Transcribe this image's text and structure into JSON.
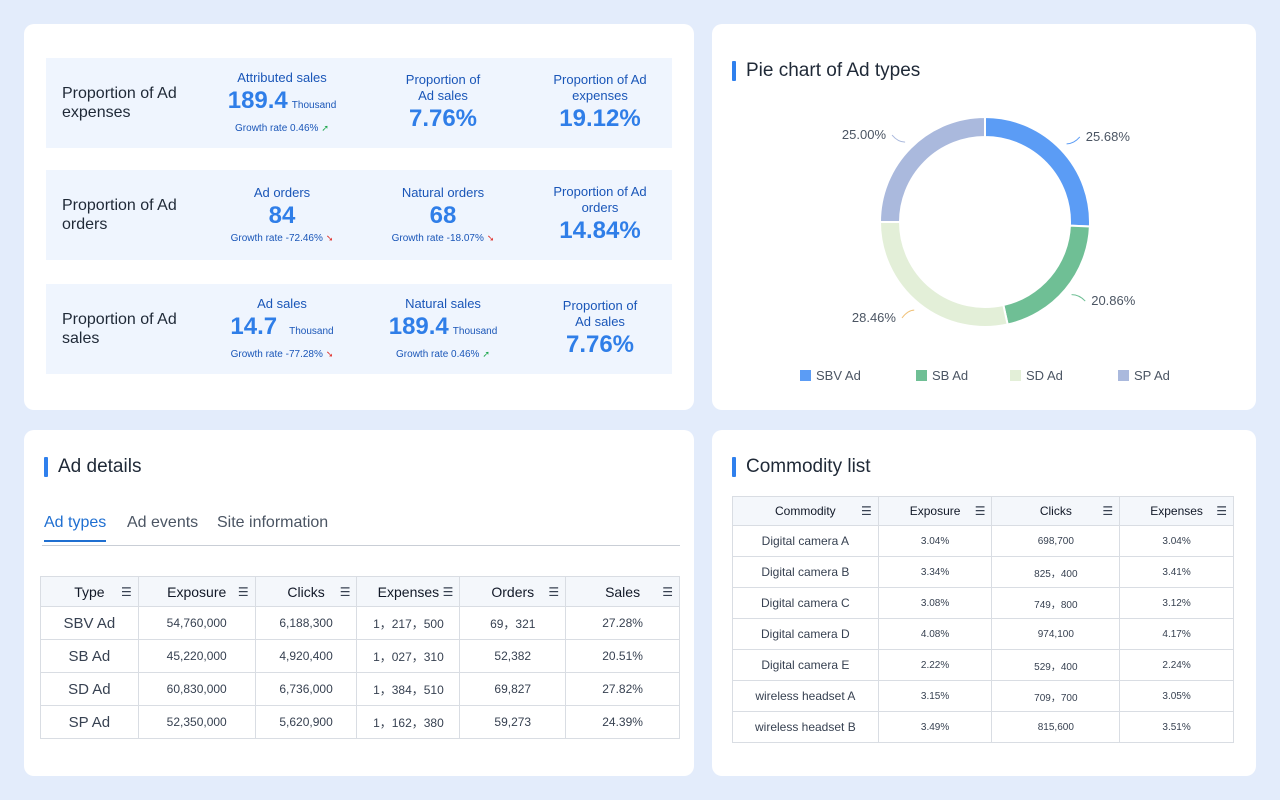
{
  "metrics": {
    "rows": [
      {
        "title": "Proportion of Ad expenses",
        "col1": {
          "label": "Attributed sales",
          "value": "189.4",
          "unit": "Thousand",
          "growth": "Growth rate 0.46%",
          "trend": "up"
        },
        "col2": {
          "label": "Proportion of Ad sales",
          "value": "7.76%"
        },
        "col3": {
          "label": "Proportion of Ad expenses",
          "value": "19.12%"
        }
      },
      {
        "title": "Proportion of Ad orders",
        "col1": {
          "label": "Ad orders",
          "value": "84",
          "unit": "",
          "growth": "Growth rate -72.46%",
          "trend": "down"
        },
        "col2": {
          "label": "Natural orders",
          "value": "68",
          "unit": "",
          "growth": "Growth rate -18.07%",
          "trend": "down"
        },
        "col3": {
          "label": "Proportion of Ad orders",
          "value": "14.84%"
        }
      },
      {
        "title": "Proportion of Ad sales",
        "col1": {
          "label": "Ad sales",
          "value": "14.7",
          "unit": "Thousand",
          "growth": "Growth rate -77.28%",
          "trend": "down"
        },
        "col2": {
          "label": "Natural sales",
          "value": "189.4",
          "unit": "Thousand",
          "growth": "Growth rate 0.46%",
          "trend": "up"
        },
        "col3": {
          "label": "Proportion of Ad sales",
          "value": "7.76%"
        }
      }
    ]
  },
  "pie": {
    "title": "Pie chart of Ad types",
    "chart_data": {
      "type": "pie",
      "title": "Pie chart of Ad types",
      "categories": [
        "SBV Ad",
        "SB Ad",
        "SD Ad",
        "SP Ad"
      ],
      "values": [
        25.68,
        20.86,
        28.46,
        25.0
      ],
      "labels": [
        "25.68%",
        "20.86%",
        "28.46%",
        "25.00%"
      ],
      "colors": [
        "#5b9cf5",
        "#6fbf95",
        "#e3efd8",
        "#aab9dd"
      ],
      "legend_position": "bottom"
    },
    "legend": [
      {
        "label": "SBV Ad",
        "color": "#5b9cf5"
      },
      {
        "label": "SB Ad",
        "color": "#6fbf95"
      },
      {
        "label": "SD Ad",
        "color": "#e3efd8"
      },
      {
        "label": "SP Ad",
        "color": "#aab9dd"
      }
    ]
  },
  "ad_details": {
    "title": "Ad details",
    "tabs": [
      "Ad types",
      "Ad events",
      "Site information"
    ],
    "columns": [
      "Type",
      "Exposure",
      "Clicks",
      "Expenses",
      "Orders",
      "Sales"
    ],
    "rows": [
      [
        "SBV Ad",
        "54,760,000",
        "6,188,300",
        "1，217，500",
        "69，321",
        "27.28%"
      ],
      [
        "SB Ad",
        "45,220,000",
        "4,920,400",
        "1，027，310",
        "52,382",
        "20.51%"
      ],
      [
        "SD Ad",
        "60,830,000",
        "6,736,000",
        "1，384，510",
        "69,827",
        "27.82%"
      ],
      [
        "SP Ad",
        "52,350,000",
        "5,620,900",
        "1，162，380",
        "59,273",
        "24.39%"
      ]
    ]
  },
  "commodity": {
    "title": "Commodity list",
    "columns": [
      "Commodity",
      "Exposure",
      "Clicks",
      "Expenses"
    ],
    "rows": [
      [
        "Digital camera A",
        "3.04%",
        "698,700",
        "3.04%"
      ],
      [
        "Digital camera B",
        "3.34%",
        "825，400",
        "3.41%"
      ],
      [
        "Digital camera C",
        "3.08%",
        "749，800",
        "3.12%"
      ],
      [
        "Digital camera D",
        "4.08%",
        "974,100",
        "4.17%"
      ],
      [
        "Digital camera E",
        "2.22%",
        "529，400",
        "2.24%"
      ],
      [
        "wireless headset A",
        "3.15%",
        "709，700",
        "3.05%"
      ],
      [
        "wireless headset B",
        "3.49%",
        "815,600",
        "3.51%"
      ]
    ]
  }
}
